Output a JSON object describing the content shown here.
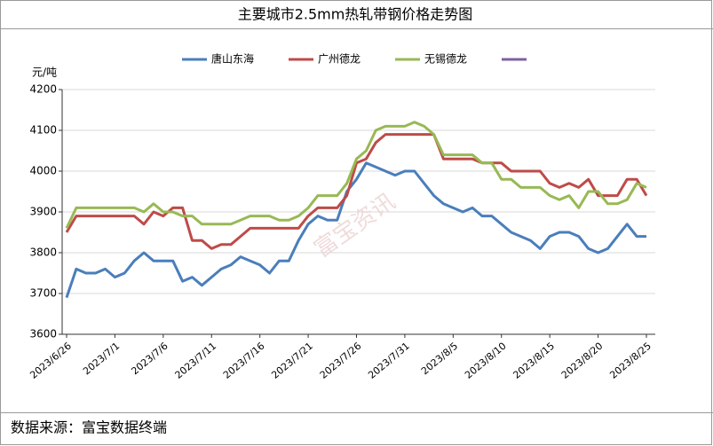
{
  "chart_data": {
    "type": "line",
    "title": "主要城市2.5mm热轧带钢价格走势图",
    "y_label": "元/吨",
    "source": "数据来源：富宝数据终端",
    "watermark": "富宝资讯",
    "categories": [
      "2023/6/26",
      null,
      null,
      null,
      null,
      "2023/7/1",
      null,
      null,
      null,
      null,
      "2023/7/6",
      null,
      null,
      null,
      null,
      "2023/7/11",
      null,
      null,
      null,
      null,
      "2023/7/16",
      null,
      null,
      null,
      null,
      "2023/7/21",
      null,
      null,
      null,
      null,
      "2023/7/26",
      null,
      null,
      null,
      null,
      "2023/7/31",
      null,
      null,
      null,
      null,
      "2023/8/5",
      null,
      null,
      null,
      null,
      "2023/8/10",
      null,
      null,
      null,
      null,
      "2023/8/15",
      null,
      null,
      null,
      null,
      "2023/8/20",
      null,
      null,
      null,
      null,
      "2023/8/25"
    ],
    "series": [
      {
        "name": "唐山东海",
        "color": "#4a7ebb",
        "values": [
          3690,
          3760,
          3750,
          3750,
          3760,
          3740,
          3750,
          3780,
          3800,
          3780,
          3780,
          3780,
          3730,
          3740,
          3720,
          3740,
          3760,
          3770,
          3790,
          3780,
          3770,
          3750,
          3780,
          3780,
          3830,
          3870,
          3890,
          3880,
          3880,
          3950,
          3980,
          4020,
          4010,
          4000,
          3990,
          4000,
          4000,
          3970,
          3940,
          3920,
          3910,
          3900,
          3910,
          3890,
          3890,
          3870,
          3850,
          3840,
          3830,
          3810,
          3840,
          3850,
          3850,
          3840,
          3810,
          3800,
          3810,
          3840,
          3870,
          3840,
          3840
        ]
      },
      {
        "name": "广州德龙",
        "color": "#be4b48",
        "values": [
          3850,
          3890,
          3890,
          3890,
          3890,
          3890,
          3890,
          3890,
          3870,
          3900,
          3890,
          3910,
          3910,
          3830,
          3830,
          3810,
          3820,
          3820,
          3840,
          3860,
          3860,
          3860,
          3860,
          3860,
          3860,
          3890,
          3910,
          3910,
          3910,
          3940,
          4020,
          4030,
          4070,
          4090,
          4090,
          4090,
          4090,
          4090,
          4090,
          4030,
          4030,
          4030,
          4030,
          4020,
          4020,
          4020,
          4000,
          4000,
          4000,
          4000,
          3970,
          3960,
          3970,
          3960,
          3980,
          3940,
          3940,
          3940,
          3980,
          3980,
          3940
        ]
      },
      {
        "name": "无锡德龙",
        "color": "#98b954",
        "values": [
          3860,
          3910,
          3910,
          3910,
          3910,
          3910,
          3910,
          3910,
          3900,
          3920,
          3900,
          3900,
          3890,
          3890,
          3870,
          3870,
          3870,
          3870,
          3880,
          3890,
          3890,
          3890,
          3880,
          3880,
          3890,
          3910,
          3940,
          3940,
          3940,
          3970,
          4030,
          4050,
          4100,
          4110,
          4110,
          4110,
          4120,
          4110,
          4090,
          4040,
          4040,
          4040,
          4040,
          4020,
          4020,
          3980,
          3980,
          3960,
          3960,
          3960,
          3940,
          3930,
          3940,
          3910,
          3950,
          3950,
          3920,
          3920,
          3930,
          3970,
          3960
        ]
      },
      {
        "color": "#7d60a0",
        "values": [
          null,
          null,
          null,
          null,
          null,
          null,
          null,
          null,
          null,
          null,
          null,
          null,
          null,
          null,
          null,
          null,
          null,
          null,
          null,
          null,
          null,
          null,
          null,
          null,
          null,
          null,
          null,
          null,
          null,
          null,
          null,
          null,
          null,
          null,
          null,
          null,
          null,
          null,
          null,
          null,
          null,
          null,
          null,
          null,
          null,
          null,
          null,
          null,
          null,
          null,
          null,
          null,
          null,
          null,
          null,
          null,
          null,
          null,
          null,
          null,
          null
        ]
      }
    ],
    "ylim": [
      3600,
      4200
    ],
    "yticks": [
      3600,
      3700,
      3800,
      3900,
      4000,
      4100,
      4200
    ],
    "grid": true
  }
}
